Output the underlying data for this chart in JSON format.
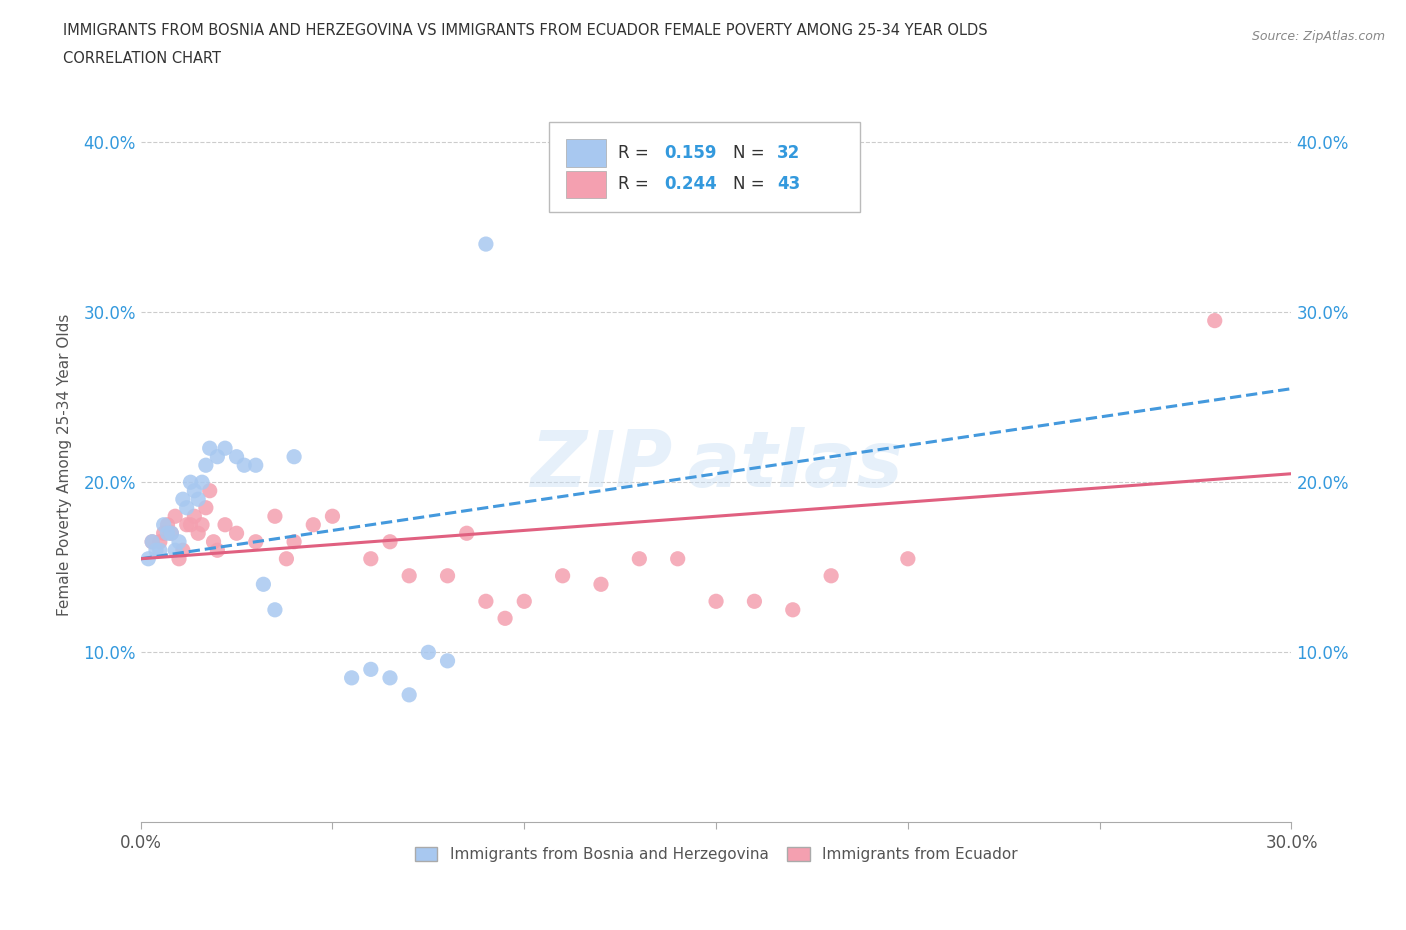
{
  "title_line1": "IMMIGRANTS FROM BOSNIA AND HERZEGOVINA VS IMMIGRANTS FROM ECUADOR FEMALE POVERTY AMONG 25-34 YEAR OLDS",
  "title_line2": "CORRELATION CHART",
  "source": "Source: ZipAtlas.com",
  "ylabel": "Female Poverty Among 25-34 Year Olds",
  "xlim": [
    0.0,
    0.3
  ],
  "ylim": [
    0.0,
    0.42
  ],
  "xticks": [
    0.0,
    0.05,
    0.1,
    0.15,
    0.2,
    0.25,
    0.3
  ],
  "yticks": [
    0.0,
    0.1,
    0.2,
    0.3,
    0.4
  ],
  "ytick_labels": [
    "",
    "10.0%",
    "20.0%",
    "30.0%",
    "40.0%"
  ],
  "xtick_labels": [
    "0.0%",
    "",
    "",
    "",
    "",
    "",
    "30.0%"
  ],
  "bosnia_color": "#a8c8f0",
  "ecuador_color": "#f4a0b0",
  "bosnia_line_color": "#4499dd",
  "ecuador_line_color": "#e06080",
  "bosnia_R": 0.159,
  "bosnia_N": 32,
  "ecuador_R": 0.244,
  "ecuador_N": 43,
  "bosnia_scatter_x": [
    0.002,
    0.003,
    0.004,
    0.005,
    0.006,
    0.007,
    0.008,
    0.009,
    0.01,
    0.011,
    0.012,
    0.013,
    0.014,
    0.015,
    0.016,
    0.017,
    0.018,
    0.02,
    0.022,
    0.025,
    0.027,
    0.03,
    0.032,
    0.035,
    0.04,
    0.055,
    0.06,
    0.065,
    0.07,
    0.075,
    0.08,
    0.09
  ],
  "bosnia_scatter_y": [
    0.155,
    0.165,
    0.16,
    0.16,
    0.175,
    0.17,
    0.17,
    0.16,
    0.165,
    0.19,
    0.185,
    0.2,
    0.195,
    0.19,
    0.2,
    0.21,
    0.22,
    0.215,
    0.22,
    0.215,
    0.21,
    0.21,
    0.14,
    0.125,
    0.215,
    0.085,
    0.09,
    0.085,
    0.075,
    0.1,
    0.095,
    0.34
  ],
  "ecuador_scatter_x": [
    0.003,
    0.005,
    0.006,
    0.007,
    0.008,
    0.009,
    0.01,
    0.011,
    0.012,
    0.013,
    0.014,
    0.015,
    0.016,
    0.017,
    0.018,
    0.019,
    0.02,
    0.022,
    0.025,
    0.03,
    0.035,
    0.038,
    0.04,
    0.045,
    0.05,
    0.06,
    0.065,
    0.07,
    0.08,
    0.085,
    0.09,
    0.095,
    0.1,
    0.11,
    0.12,
    0.13,
    0.14,
    0.15,
    0.16,
    0.17,
    0.18,
    0.2,
    0.28
  ],
  "ecuador_scatter_y": [
    0.165,
    0.165,
    0.17,
    0.175,
    0.17,
    0.18,
    0.155,
    0.16,
    0.175,
    0.175,
    0.18,
    0.17,
    0.175,
    0.185,
    0.195,
    0.165,
    0.16,
    0.175,
    0.17,
    0.165,
    0.18,
    0.155,
    0.165,
    0.175,
    0.18,
    0.155,
    0.165,
    0.145,
    0.145,
    0.17,
    0.13,
    0.12,
    0.13,
    0.145,
    0.14,
    0.155,
    0.155,
    0.13,
    0.13,
    0.125,
    0.145,
    0.155,
    0.295
  ],
  "legend_label_bosnia": "Immigrants from Bosnia and Herzegovina",
  "legend_label_ecuador": "Immigrants from Ecuador"
}
